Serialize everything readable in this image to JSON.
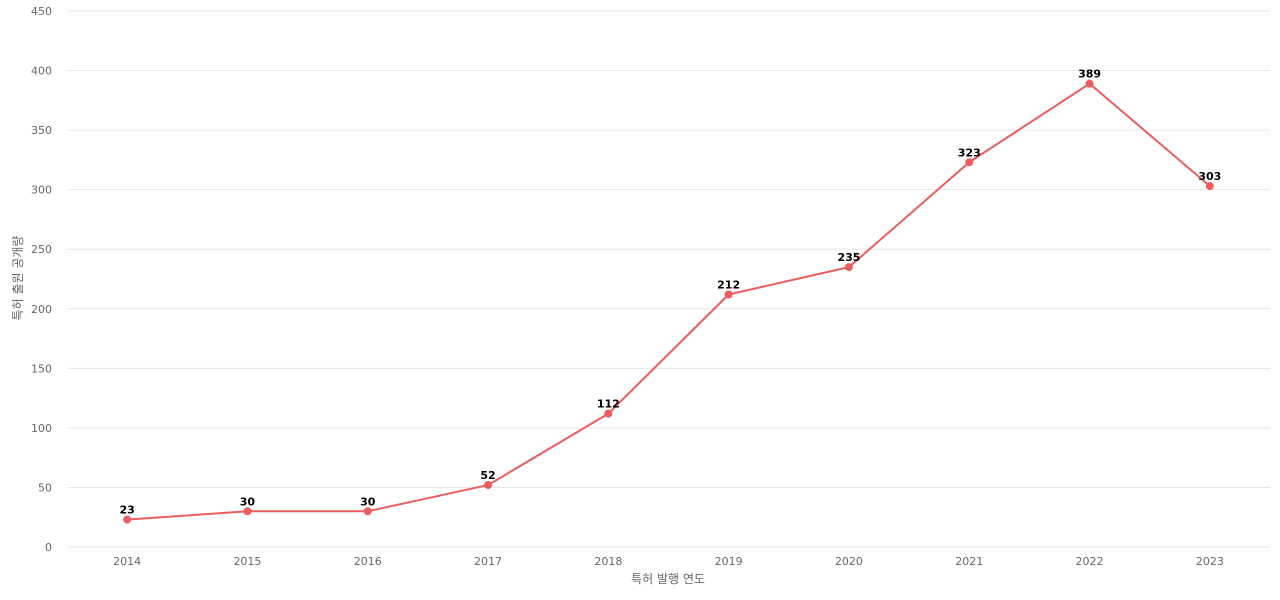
{
  "chart_data": {
    "type": "line",
    "xlabel": "특허 발행 연도",
    "ylabel": "특허 출원 공개량",
    "categories": [
      "2014",
      "2015",
      "2016",
      "2017",
      "2018",
      "2019",
      "2020",
      "2021",
      "2022",
      "2023"
    ],
    "series": [
      {
        "values": [
          23,
          30,
          30,
          52,
          112,
          212,
          235,
          323,
          389,
          303
        ],
        "color": "#ec5d5d"
      }
    ],
    "ylim": [
      0,
      450
    ],
    "yticks": [
      0,
      50,
      100,
      150,
      200,
      250,
      300,
      350,
      400,
      450
    ],
    "grid": true,
    "data_labels": true
  }
}
